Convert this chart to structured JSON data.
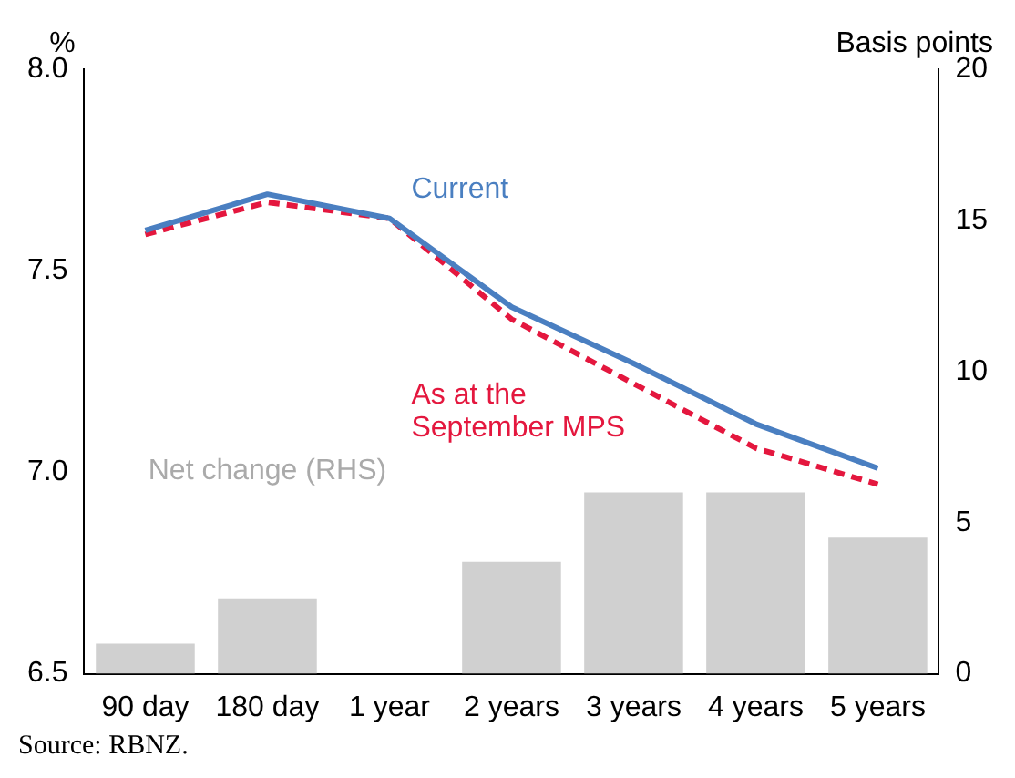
{
  "chart_data": {
    "type": "line",
    "categories": [
      "90 day",
      "180 day",
      "1 year",
      "2 years",
      "3 years",
      "4 years",
      "5 years"
    ],
    "ylabel": "%",
    "y2label": "Basis points",
    "series": [
      {
        "name": "Net change (RHS)",
        "type": "bar",
        "axis": "y2",
        "color": "#d0d0d0",
        "values": [
          1,
          2.5,
          0,
          3.7,
          6,
          6,
          4.5
        ]
      },
      {
        "name": "Current",
        "color": "#4a7fc1",
        "line_style": "solid",
        "values": [
          7.6,
          7.69,
          7.63,
          7.41,
          7.27,
          7.12,
          7.01
        ]
      },
      {
        "name": "As at the September MPS",
        "color": "#e4173e",
        "line_style": "dashed",
        "values": [
          7.59,
          7.67,
          7.63,
          7.38,
          7.22,
          7.06,
          6.97
        ]
      }
    ],
    "ylim": [
      6.5,
      8
    ],
    "yticks": [
      6.5,
      {
        "value": 7,
        "label": "7.0"
      },
      7.5,
      {
        "value": 8,
        "label": "8.0"
      }
    ],
    "y2lim": [
      0,
      20
    ],
    "y2ticks": [
      0,
      5,
      10,
      15,
      20
    ],
    "grid": false,
    "legend": false,
    "marker": "none",
    "annotations": [
      "Source: RBNZ."
    ]
  }
}
